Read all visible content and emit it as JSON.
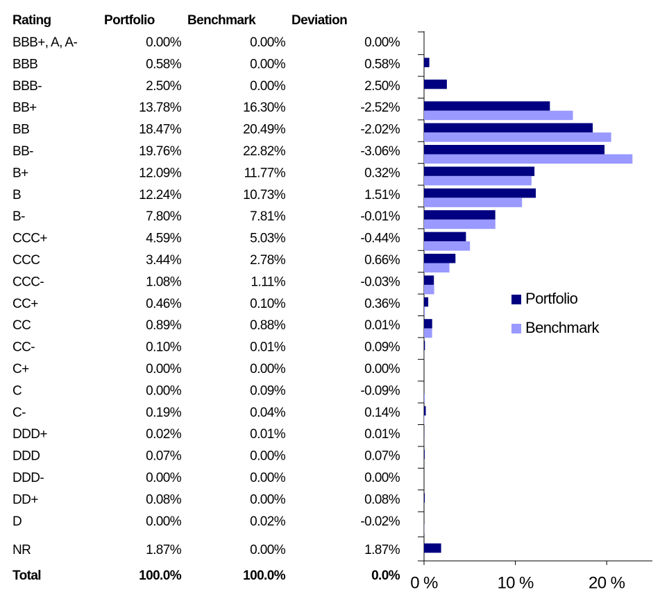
{
  "table": {
    "rating_header": "Rating",
    "deviation_header": "Deviation",
    "deviation": [
      "0.00%",
      "0.58%",
      "2.50%",
      "-2.52%",
      "-2.02%",
      "-3.06%",
      "0.32%",
      "1.51%",
      "-0.01%",
      "-0.44%",
      "0.66%",
      "-0.03%",
      "0.36%",
      "0.01%",
      "0.09%",
      "0.00%",
      "-0.09%",
      "0.14%",
      "0.01%",
      "0.07%",
      "0.00%",
      "0.08%",
      "-0.02%",
      "1.87%"
    ],
    "total": [
      "Total",
      "100.0%",
      "100.0%",
      "0.0%"
    ]
  },
  "chart_data": {
    "type": "bar",
    "orientation": "horizontal",
    "categories": [
      "BBB+, A, A-",
      "BBB",
      "BBB-",
      "BB+",
      "BB",
      "BB-",
      "B+",
      "B",
      "B-",
      "CCC+",
      "CCC",
      "CCC-",
      "CC+",
      "CC",
      "CC-",
      "C+",
      "C",
      "C-",
      "DDD+",
      "DDD",
      "DDD-",
      "DD+",
      "D",
      "NR"
    ],
    "series": [
      {
        "name": "Portfolio",
        "color": "#000080",
        "values": [
          0,
          0.58,
          2.5,
          13.78,
          18.47,
          19.76,
          12.09,
          12.24,
          7.8,
          4.59,
          3.44,
          1.08,
          0.46,
          0.89,
          0.1,
          0,
          0,
          0.19,
          0.02,
          0.07,
          0,
          0.08,
          0,
          1.87
        ],
        "value_labels": [
          "0.00%",
          "0.58%",
          "2.50%",
          "13.78%",
          "18.47%",
          "19.76%",
          "12.09%",
          "12.24%",
          "7.80%",
          "4.59%",
          "3.44%",
          "1.08%",
          "0.46%",
          "0.89%",
          "0.10%",
          "0.00%",
          "0.00%",
          "0.19%",
          "0.02%",
          "0.07%",
          "0.00%",
          "0.08%",
          "0.00%",
          "1.87%"
        ]
      },
      {
        "name": "Benchmark",
        "color": "#9999ff",
        "values": [
          0,
          0,
          0,
          16.3,
          20.49,
          22.82,
          11.77,
          10.73,
          7.81,
          5.03,
          2.78,
          1.11,
          0.1,
          0.88,
          0.01,
          0,
          0.09,
          0.04,
          0.01,
          0,
          0,
          0,
          0.02,
          0
        ],
        "value_labels": [
          "0.00%",
          "0.00%",
          "0.00%",
          "16.30%",
          "20.49%",
          "22.82%",
          "11.77%",
          "10.73%",
          "7.81%",
          "5.03%",
          "2.78%",
          "1.11%",
          "0.10%",
          "0.88%",
          "0.01%",
          "0.00%",
          "0.09%",
          "0.04%",
          "0.01%",
          "0.00%",
          "0.00%",
          "0.00%",
          "0.02%",
          "0.00%"
        ]
      }
    ],
    "xlim": [
      0,
      25
    ],
    "xticks": [
      {
        "value": 0,
        "label": "0 %"
      },
      {
        "value": 10,
        "label": "10 %"
      },
      {
        "value": 20,
        "label": "20 %"
      }
    ],
    "legend": "right"
  }
}
